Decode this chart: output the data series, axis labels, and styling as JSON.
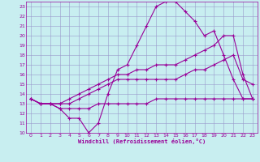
{
  "title": "",
  "xlabel": "Windchill (Refroidissement éolien,°C)",
  "ylabel": "",
  "bg_color": "#c8eef0",
  "line_color": "#990099",
  "grid_color": "#9999cc",
  "xlim": [
    -0.5,
    23.5
  ],
  "ylim": [
    10,
    23.5
  ],
  "xticks": [
    0,
    1,
    2,
    3,
    4,
    5,
    6,
    7,
    8,
    9,
    10,
    11,
    12,
    13,
    14,
    15,
    16,
    17,
    18,
    19,
    20,
    21,
    22,
    23
  ],
  "yticks": [
    10,
    11,
    12,
    13,
    14,
    15,
    16,
    17,
    18,
    19,
    20,
    21,
    22,
    23
  ],
  "curve1_x": [
    0,
    1,
    2,
    3,
    4,
    5,
    6,
    7,
    8,
    9,
    10,
    11,
    12,
    13,
    14,
    15,
    16,
    17,
    18,
    19,
    20,
    21,
    22,
    23
  ],
  "curve1_y": [
    13.5,
    13,
    13,
    12.5,
    11.5,
    11.5,
    10,
    11,
    14,
    16.5,
    17,
    19,
    21,
    23,
    23.5,
    23.5,
    22.5,
    21.5,
    20,
    20.5,
    18,
    15.5,
    13.5,
    13.5
  ],
  "curve2_x": [
    0,
    1,
    2,
    3,
    4,
    5,
    6,
    7,
    8,
    9,
    10,
    11,
    12,
    13,
    14,
    15,
    16,
    17,
    18,
    19,
    20,
    21,
    22,
    23
  ],
  "curve2_y": [
    13.5,
    13,
    13,
    12.5,
    12.5,
    12.5,
    12.5,
    13,
    13,
    13,
    13,
    13,
    13,
    13.5,
    13.5,
    13.5,
    13.5,
    13.5,
    13.5,
    13.5,
    13.5,
    13.5,
    13.5,
    13.5
  ],
  "curve3_x": [
    0,
    1,
    2,
    3,
    4,
    5,
    6,
    7,
    8,
    9,
    10,
    11,
    12,
    13,
    14,
    15,
    16,
    17,
    18,
    19,
    20,
    21,
    22,
    23
  ],
  "curve3_y": [
    13.5,
    13,
    13,
    13,
    13,
    13.5,
    14,
    14.5,
    15,
    15.5,
    15.5,
    15.5,
    15.5,
    15.5,
    15.5,
    15.5,
    16,
    16.5,
    16.5,
    17,
    17.5,
    18,
    15.5,
    15
  ],
  "curve4_x": [
    0,
    1,
    2,
    3,
    4,
    5,
    6,
    7,
    8,
    9,
    10,
    11,
    12,
    13,
    14,
    15,
    16,
    17,
    18,
    19,
    20,
    21,
    22,
    23
  ],
  "curve4_y": [
    13.5,
    13,
    13,
    13,
    13.5,
    14,
    14.5,
    15,
    15.5,
    16,
    16,
    16.5,
    16.5,
    17,
    17,
    17,
    17.5,
    18,
    18.5,
    19,
    20,
    20,
    16,
    13.5
  ],
  "tick_fontsize": 4.5,
  "xlabel_fontsize": 5.0
}
